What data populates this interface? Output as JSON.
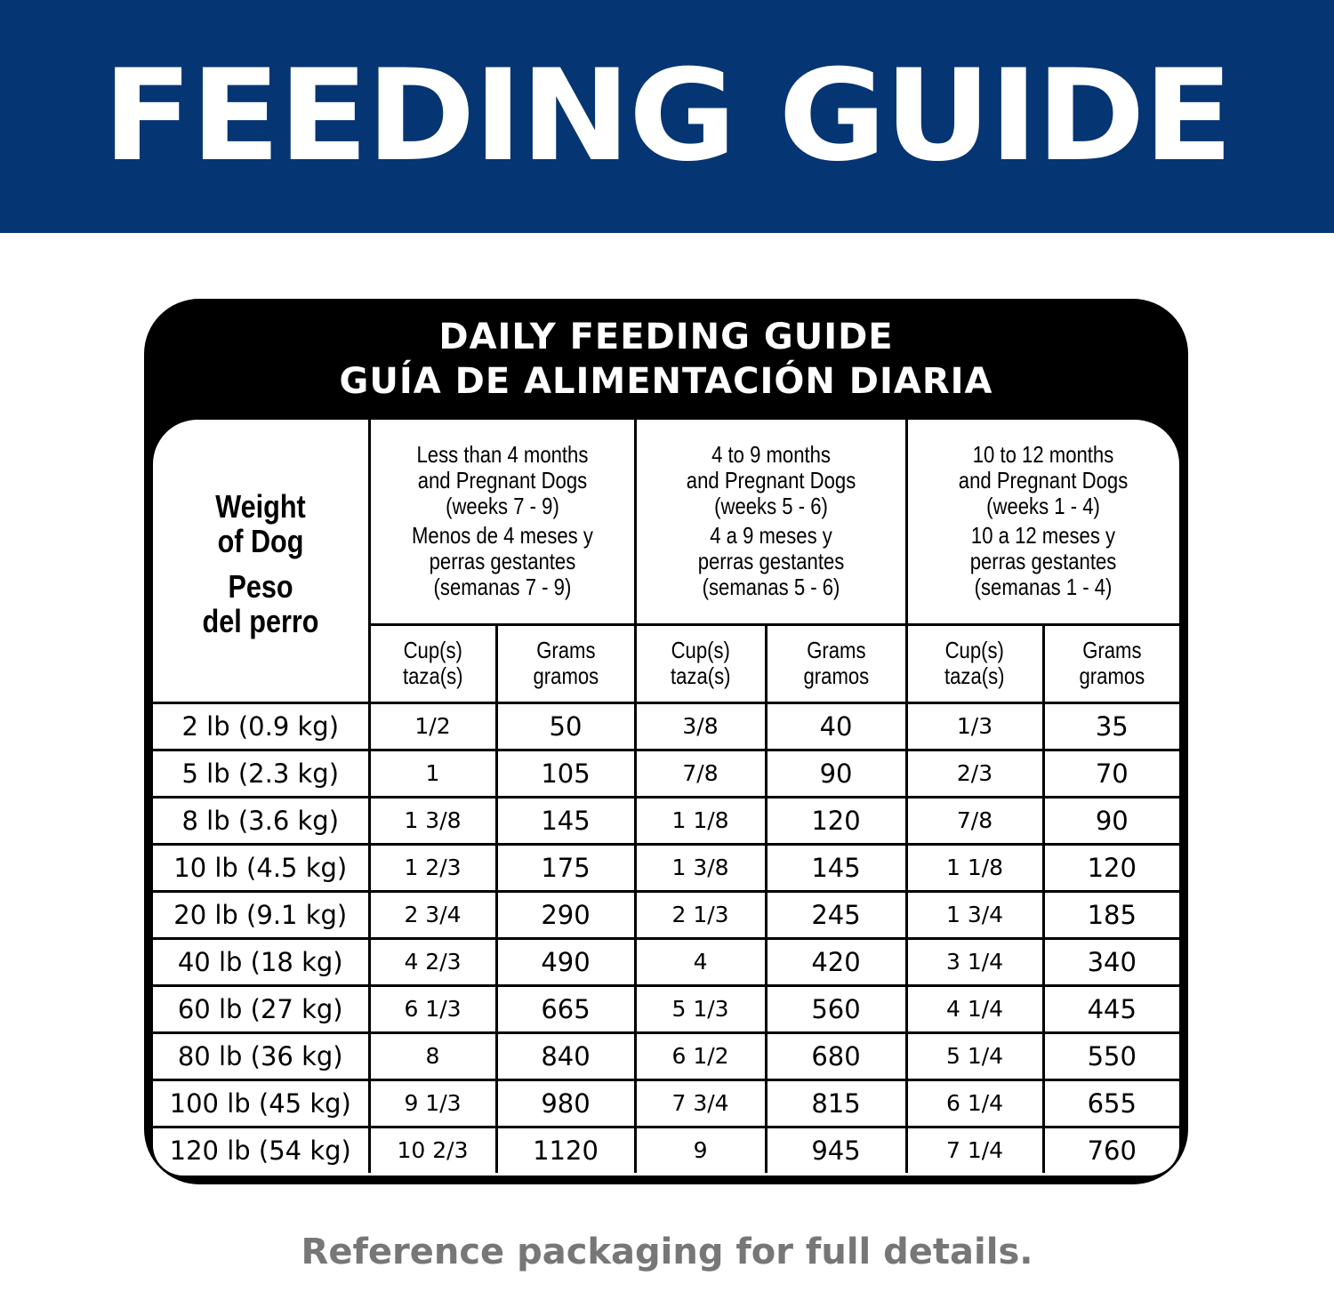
{
  "banner": {
    "title": "FEEDING GUIDE",
    "background": "#053572"
  },
  "card": {
    "title_en": "DAILY FEEDING GUIDE",
    "title_es": "GUÍA DE ALIMENTACIÓN DIARIA"
  },
  "table": {
    "weight_header": {
      "en1": "Weight",
      "en2": "of Dog",
      "es1": "Peso",
      "es2": "del perro"
    },
    "groups": [
      {
        "lines": [
          "Less than 4 months",
          "and Pregnant Dogs",
          "(weeks 7 - 9)",
          "Menos de 4 meses y",
          "perras gestantes",
          "(semanas 7 - 9)"
        ]
      },
      {
        "lines": [
          "4 to 9 months",
          "and Pregnant Dogs",
          "(weeks 5 - 6)",
          "4 a 9 meses y",
          "perras gestantes",
          "(semanas 5 - 6)"
        ]
      },
      {
        "lines": [
          "10 to 12 months",
          "and Pregnant Dogs",
          "(weeks 1 - 4)",
          "10 a 12 meses y",
          "perras gestantes",
          "(semanas 1 - 4)"
        ]
      }
    ],
    "sub_headers": {
      "cups": [
        "Cup(s)",
        "taza(s)"
      ],
      "grams": [
        "Grams",
        "gramos"
      ]
    },
    "rows": [
      {
        "weight": "2 lb (0.9 kg)",
        "values": [
          "1/2",
          "50",
          "3/8",
          "40",
          "1/3",
          "35"
        ]
      },
      {
        "weight": "5 lb (2.3 kg)",
        "values": [
          "1",
          "105",
          "7/8",
          "90",
          "2/3",
          "70"
        ]
      },
      {
        "weight": "8 lb (3.6 kg)",
        "values": [
          "1 3/8",
          "145",
          "1 1/8",
          "120",
          "7/8",
          "90"
        ]
      },
      {
        "weight": "10 lb (4.5 kg)",
        "values": [
          "1 2/3",
          "175",
          "1 3/8",
          "145",
          "1 1/8",
          "120"
        ]
      },
      {
        "weight": "20 lb (9.1 kg)",
        "values": [
          "2 3/4",
          "290",
          "2 1/3",
          "245",
          "1 3/4",
          "185"
        ]
      },
      {
        "weight": "40 lb (18 kg)",
        "values": [
          "4 2/3",
          "490",
          "4",
          "420",
          "3 1/4",
          "340"
        ]
      },
      {
        "weight": "60 lb (27 kg)",
        "values": [
          "6 1/3",
          "665",
          "5 1/3",
          "560",
          "4 1/4",
          "445"
        ]
      },
      {
        "weight": "80 lb (36 kg)",
        "values": [
          "8",
          "840",
          "6 1/2",
          "680",
          "5 1/4",
          "550"
        ]
      },
      {
        "weight": "100 lb (45 kg)",
        "values": [
          "9 1/3",
          "980",
          "7 3/4",
          "815",
          "6 1/4",
          "655"
        ]
      },
      {
        "weight": "120 lb (54 kg)",
        "values": [
          "10 2/3",
          "1120",
          "9",
          "945",
          "7 1/4",
          "760"
        ]
      }
    ]
  },
  "footer": {
    "text": "Reference packaging for full details."
  }
}
